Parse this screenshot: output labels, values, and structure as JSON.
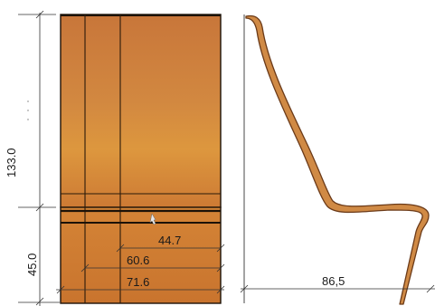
{
  "front_view": {
    "dimensions": {
      "total_upper": "133.0",
      "seat_height": "45.0",
      "width_1": "44.7",
      "width_2": "60.6",
      "width_3": "71.6"
    },
    "colors": {
      "wood_top": "#c9773a",
      "wood_mid": "#d48a3c",
      "wood_bottom": "#cf7a32",
      "outline": "#1c1208"
    }
  },
  "side_view": {
    "dimensions": {
      "depth": "86,5"
    },
    "colors": {
      "profile_fill": "#d08a45",
      "profile_stroke": "#6b3a18"
    }
  }
}
